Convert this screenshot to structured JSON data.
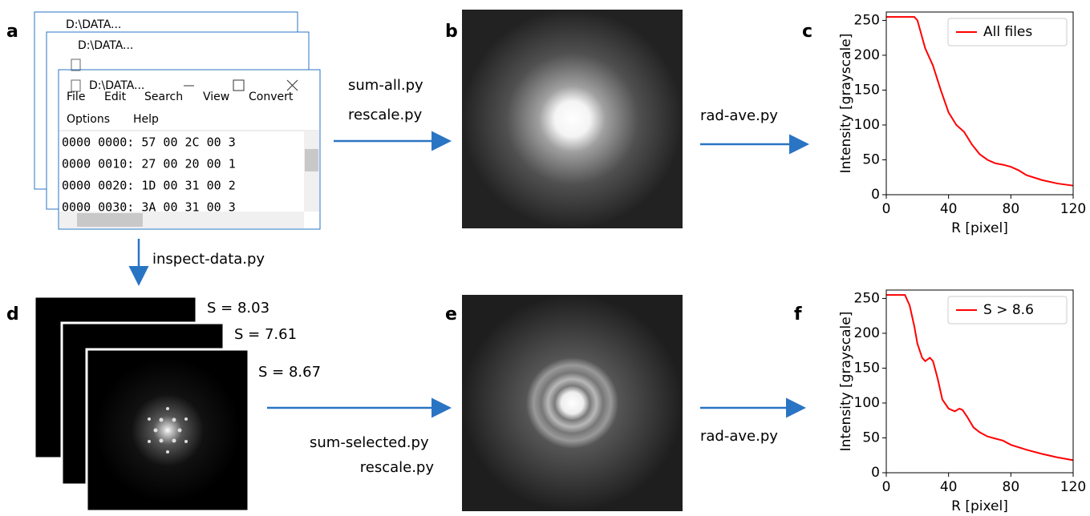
{
  "panel_labels": [
    "a",
    "b",
    "c",
    "d",
    "e",
    "f"
  ],
  "notepad": {
    "title": "D:\\DATA...",
    "menu": [
      "File",
      "Edit",
      "Search",
      "View",
      "Convert",
      "Options",
      "Help"
    ],
    "lines": [
      "0000 0000:  57 00 2C 00  3",
      "0000 0010:  27 00 20 00  1",
      "0000 0020:  1D 00 31 00  2",
      "0000 0030:  3A 00 31 00  3"
    ]
  },
  "steps": {
    "top": [
      "sum-all.py",
      "rescale.py"
    ],
    "top_right": "rad-ave.py",
    "down": "inspect-data.py",
    "bottom": [
      "sum-selected.py",
      "rescale.py"
    ],
    "bottom_right": "rad-ave.py"
  },
  "scores": [
    "S = 8.03",
    "S = 7.61",
    "S = 8.67"
  ],
  "chart_data": [
    {
      "type": "line",
      "xlabel": "R [pixel]",
      "ylabel": "Intensity [grayscale]",
      "xlim": [
        0,
        120
      ],
      "xticks": [
        0,
        40,
        80,
        120
      ],
      "ylim": [
        0,
        262
      ],
      "yticks": [
        0,
        50,
        100,
        150,
        200,
        250
      ],
      "legend": "upper right",
      "series": [
        {
          "name": "All files",
          "color": "#ff0000",
          "x": [
            0,
            10,
            18,
            20,
            25,
            30,
            35,
            40,
            45,
            50,
            55,
            60,
            65,
            70,
            75,
            80,
            85,
            90,
            100,
            110,
            120
          ],
          "values": [
            255,
            255,
            255,
            250,
            210,
            185,
            150,
            118,
            100,
            90,
            72,
            58,
            50,
            45,
            43,
            40,
            35,
            28,
            21,
            16,
            13
          ]
        }
      ]
    },
    {
      "type": "line",
      "xlabel": "R [pixel]",
      "ylabel": "Intensity [grayscale]",
      "xlim": [
        0,
        120
      ],
      "xticks": [
        0,
        40,
        80,
        120
      ],
      "ylim": [
        0,
        262
      ],
      "yticks": [
        0,
        50,
        100,
        150,
        200,
        250
      ],
      "legend": "upper right",
      "series": [
        {
          "name": "S > 8.6",
          "color": "#ff0000",
          "x": [
            0,
            6,
            12,
            15,
            18,
            20,
            23,
            25,
            28,
            30,
            33,
            36,
            40,
            44,
            47,
            49,
            52,
            56,
            60,
            65,
            70,
            75,
            80,
            90,
            100,
            110,
            120
          ],
          "values": [
            255,
            255,
            255,
            240,
            210,
            185,
            165,
            160,
            165,
            160,
            135,
            105,
            92,
            88,
            92,
            90,
            80,
            65,
            58,
            52,
            49,
            46,
            40,
            33,
            27,
            22,
            18
          ]
        }
      ]
    }
  ]
}
